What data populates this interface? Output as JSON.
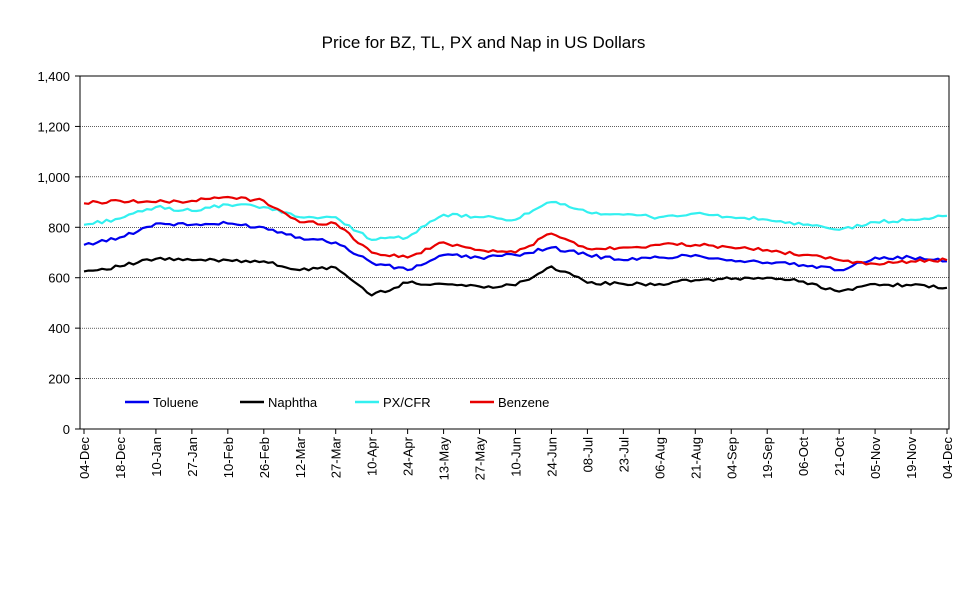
{
  "chart_data": {
    "type": "line",
    "title": "Price for BZ, TL, PX and Nap in US Dollars",
    "xlabel": "",
    "ylabel": "",
    "ylim": [
      0,
      1400
    ],
    "yticks": [
      0,
      200,
      400,
      600,
      800,
      1000,
      1200,
      1400
    ],
    "ytick_labels": [
      "0",
      "200",
      "400",
      "600",
      "800",
      "1,000",
      "1,200",
      "1,400"
    ],
    "grid": true,
    "legend_position": "bottom-left",
    "categories": [
      "04-Dec",
      "18-Dec",
      "10-Jan",
      "27-Jan",
      "10-Feb",
      "26-Feb",
      "12-Mar",
      "27-Mar",
      "10-Apr",
      "24-Apr",
      "13-May",
      "27-May",
      "10-Jun",
      "24-Jun",
      "08-Jul",
      "23-Jul",
      "06-Aug",
      "21-Aug",
      "04-Sep",
      "19-Sep",
      "06-Oct",
      "21-Oct",
      "05-Nov",
      "19-Nov",
      "04-Dec"
    ],
    "series": [
      {
        "name": "Toluene",
        "color": "#0000ee",
        "values": [
          730,
          760,
          815,
          810,
          815,
          800,
          760,
          740,
          660,
          630,
          690,
          680,
          690,
          720,
          690,
          670,
          680,
          690,
          670,
          660,
          650,
          630,
          680,
          680,
          665
        ]
      },
      {
        "name": "Naphtha",
        "color": "#000000",
        "values": [
          625,
          645,
          675,
          670,
          670,
          665,
          630,
          640,
          530,
          580,
          575,
          565,
          570,
          645,
          580,
          575,
          575,
          590,
          595,
          600,
          585,
          545,
          575,
          570,
          560
        ]
      },
      {
        "name": "PX/CFR",
        "color": "#33f0f0",
        "values": [
          810,
          835,
          880,
          865,
          890,
          880,
          840,
          840,
          750,
          760,
          850,
          840,
          830,
          900,
          860,
          850,
          840,
          855,
          840,
          830,
          810,
          790,
          820,
          830,
          845
        ]
      },
      {
        "name": "Benzene",
        "color": "#e80000",
        "values": [
          895,
          905,
          900,
          905,
          920,
          905,
          820,
          815,
          700,
          680,
          740,
          710,
          700,
          775,
          715,
          720,
          730,
          730,
          720,
          710,
          690,
          670,
          655,
          665,
          670
        ]
      }
    ]
  }
}
